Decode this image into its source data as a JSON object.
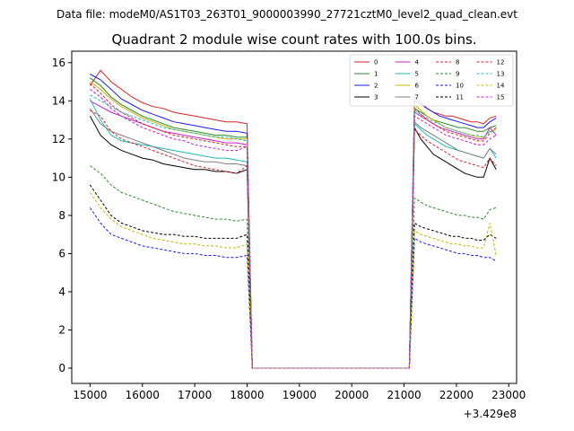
{
  "suptitle": "Data file: modeM0/AS1T03_263T01_9000003990_27721cztM0_level2_quad_clean.evt",
  "chart_data": {
    "type": "line",
    "title": "Quadrant 2 module wise count rates with 100.0s bins.",
    "xlabel": "",
    "ylabel": "",
    "x_offset_label": "+3.429e8",
    "xlim": [
      14650,
      23150
    ],
    "ylim": [
      -0.8,
      16.6
    ],
    "x_ticks": [
      15000,
      16000,
      17000,
      18000,
      19000,
      20000,
      21000,
      22000,
      23000
    ],
    "x_tick_labels": [
      "15000",
      "16000",
      "17000",
      "18000",
      "19000",
      "20000",
      "21000",
      "22000",
      "23000"
    ],
    "y_ticks": [
      0,
      2,
      4,
      6,
      8,
      10,
      12,
      14,
      16
    ],
    "y_tick_labels": [
      "0",
      "2",
      "4",
      "6",
      "8",
      "10",
      "12",
      "14",
      "16"
    ],
    "grid": false,
    "legend_location": "upper right",
    "gap": [
      18100,
      21100
    ],
    "series": [
      {
        "name": "0",
        "color": "#d62020",
        "dash": false,
        "seg1": [
          14.8,
          15.6,
          15.0,
          14.6,
          14.2,
          13.9,
          13.7,
          13.6,
          13.4,
          13.3,
          13.2,
          13.1,
          13.0,
          12.9,
          12.9,
          12.8
        ],
        "seg2": [
          14.0,
          13.8,
          13.6,
          13.4,
          13.3,
          13.2,
          13.2,
          13.1,
          13.0,
          12.9,
          12.9,
          12.8,
          13.1,
          13.2
        ]
      },
      {
        "name": "1",
        "color": "#2a8a2a",
        "dash": false,
        "seg1": [
          15.2,
          14.8,
          14.2,
          13.8,
          13.5,
          13.2,
          13.0,
          12.8,
          12.6,
          12.5,
          12.4,
          12.3,
          12.2,
          12.2,
          12.1,
          12.1
        ],
        "seg2": [
          13.6,
          13.4,
          13.2,
          13.0,
          12.9,
          12.8,
          12.7,
          12.6,
          12.6,
          12.5,
          12.4,
          12.4,
          12.6,
          12.7
        ]
      },
      {
        "name": "2",
        "color": "#1a1af0",
        "dash": false,
        "seg1": [
          15.4,
          15.1,
          14.6,
          14.1,
          13.8,
          13.5,
          13.3,
          13.1,
          12.9,
          12.8,
          12.7,
          12.6,
          12.5,
          12.4,
          12.4,
          12.3
        ],
        "seg2": [
          14.2,
          13.9,
          13.6,
          13.4,
          13.2,
          13.1,
          13.0,
          12.9,
          12.8,
          12.7,
          12.6,
          12.6,
          12.9,
          13.1
        ]
      },
      {
        "name": "3",
        "color": "#000000",
        "dash": false,
        "seg1": [
          13.2,
          12.2,
          11.7,
          11.4,
          11.2,
          11.0,
          10.9,
          10.7,
          10.6,
          10.5,
          10.4,
          10.4,
          10.3,
          10.3,
          10.2,
          10.4
        ],
        "seg2": [
          12.6,
          12.0,
          11.6,
          11.2,
          11.0,
          10.8,
          10.6,
          10.4,
          10.2,
          10.1,
          10.0,
          10.0,
          11.0,
          10.4
        ]
      },
      {
        "name": "4",
        "color": "#c020c0",
        "dash": false,
        "seg1": [
          14.0,
          13.7,
          13.4,
          13.2,
          13.0,
          12.8,
          12.6,
          12.4,
          12.3,
          12.2,
          12.1,
          12.0,
          11.9,
          11.8,
          11.8,
          11.7
        ],
        "seg2": [
          13.4,
          13.2,
          13.0,
          12.8,
          12.6,
          12.5,
          12.4,
          12.3,
          12.2,
          12.1,
          12.0,
          12.0,
          12.6,
          12.2
        ]
      },
      {
        "name": "5",
        "color": "#20b8b8",
        "dash": false,
        "seg1": [
          14.1,
          13.0,
          12.2,
          11.9,
          11.8,
          11.7,
          11.6,
          11.5,
          11.4,
          11.3,
          11.2,
          11.1,
          11.0,
          11.0,
          10.9,
          10.8
        ],
        "seg2": [
          12.8,
          12.5,
          12.2,
          12.0,
          11.8,
          11.6,
          11.5,
          11.4,
          11.3,
          11.2,
          11.1,
          11.0,
          11.5,
          11.0
        ]
      },
      {
        "name": "6",
        "color": "#c8b400",
        "dash": false,
        "seg1": [
          15.0,
          14.6,
          14.1,
          13.7,
          13.4,
          13.1,
          12.9,
          12.7,
          12.5,
          12.4,
          12.3,
          12.2,
          12.1,
          12.0,
          12.0,
          12.0
        ],
        "seg2": [
          13.8,
          13.5,
          13.2,
          13.0,
          12.8,
          12.6,
          12.5,
          12.4,
          12.3,
          12.2,
          12.1,
          12.1,
          12.4,
          12.5
        ]
      },
      {
        "name": "7",
        "color": "#7f7f7f",
        "dash": false,
        "seg1": [
          13.6,
          12.8,
          12.4,
          12.2,
          12.0,
          11.8,
          11.6,
          11.4,
          11.2,
          11.0,
          10.9,
          10.8,
          10.8,
          10.7,
          10.7,
          10.6
        ],
        "seg2": [
          12.9,
          12.6,
          12.4,
          12.2,
          12.0,
          11.8,
          11.6,
          11.4,
          11.3,
          11.2,
          11.1,
          11.0,
          11.5,
          11.2
        ]
      },
      {
        "name": "8",
        "color": "#d62020",
        "dash": true,
        "seg1": [
          13.5,
          13.2,
          12.4,
          12.0,
          11.8,
          11.6,
          11.4,
          11.2,
          11.0,
          10.8,
          10.6,
          10.5,
          10.4,
          10.3,
          10.2,
          10.6
        ],
        "seg2": [
          12.5,
          12.2,
          11.9,
          11.7,
          11.5,
          11.3,
          11.1,
          10.9,
          10.8,
          10.7,
          10.6,
          10.5,
          11.0,
          10.6
        ]
      },
      {
        "name": "9",
        "color": "#2a8a2a",
        "dash": true,
        "seg1": [
          10.6,
          10.2,
          9.6,
          9.2,
          9.0,
          8.8,
          8.6,
          8.4,
          8.2,
          8.1,
          8.0,
          7.9,
          7.8,
          7.8,
          7.7,
          7.8
        ],
        "seg2": [
          8.9,
          8.7,
          8.5,
          8.4,
          8.3,
          8.2,
          8.1,
          8.0,
          8.0,
          7.9,
          7.9,
          7.8,
          8.3,
          8.4
        ]
      },
      {
        "name": "10",
        "color": "#1a1af0",
        "dash": true,
        "seg1": [
          8.4,
          7.6,
          7.0,
          6.8,
          6.6,
          6.4,
          6.3,
          6.2,
          6.1,
          6.0,
          6.0,
          5.9,
          5.9,
          5.8,
          5.8,
          5.9
        ],
        "seg2": [
          6.8,
          6.6,
          6.5,
          6.4,
          6.3,
          6.2,
          6.1,
          6.0,
          6.0,
          5.9,
          5.9,
          5.8,
          5.8,
          5.6
        ]
      },
      {
        "name": "11",
        "color": "#000000",
        "dash": true,
        "seg1": [
          9.6,
          8.8,
          8.0,
          7.6,
          7.4,
          7.2,
          7.1,
          7.0,
          7.0,
          6.9,
          6.9,
          6.8,
          6.8,
          6.8,
          6.8,
          7.0
        ],
        "seg2": [
          7.6,
          7.4,
          7.3,
          7.2,
          7.1,
          7.0,
          6.9,
          6.9,
          6.8,
          6.8,
          6.7,
          6.7,
          7.0,
          6.8
        ]
      },
      {
        "name": "12",
        "color": "#d62020",
        "dash": true,
        "seg1": [
          14.9,
          14.4,
          13.8,
          13.4,
          13.1,
          12.8,
          12.6,
          12.4,
          12.2,
          12.1,
          12.0,
          11.9,
          11.8,
          11.7,
          11.6,
          11.6
        ],
        "seg2": [
          13.6,
          13.3,
          13.0,
          12.8,
          12.6,
          12.4,
          12.3,
          12.2,
          12.1,
          12.0,
          11.9,
          11.9,
          12.3,
          12.6
        ]
      },
      {
        "name": "13",
        "color": "#20b8b8",
        "dash": true,
        "seg1": [
          14.3,
          14.0,
          13.7,
          13.4,
          13.2,
          13.0,
          12.8,
          12.6,
          12.5,
          12.4,
          12.3,
          12.2,
          12.1,
          12.1,
          12.0,
          11.9
        ],
        "seg2": [
          13.5,
          13.3,
          13.1,
          12.9,
          12.8,
          12.6,
          12.5,
          12.4,
          12.3,
          12.2,
          12.2,
          12.1,
          12.4,
          12.4
        ]
      },
      {
        "name": "14",
        "color": "#c8b400",
        "dash": true,
        "seg1": [
          9.2,
          8.4,
          7.8,
          7.4,
          7.2,
          7.0,
          6.8,
          6.7,
          6.6,
          6.5,
          6.5,
          6.4,
          6.4,
          6.3,
          6.3,
          6.5
        ],
        "seg2": [
          7.2,
          7.0,
          6.9,
          6.8,
          6.7,
          6.6,
          6.5,
          6.5,
          6.4,
          6.4,
          6.3,
          6.3,
          7.6,
          5.9
        ]
      },
      {
        "name": "15",
        "color": "#c020c0",
        "dash": true,
        "seg1": [
          14.6,
          14.2,
          13.6,
          13.2,
          12.9,
          12.6,
          12.4,
          12.2,
          12.0,
          11.9,
          11.7,
          11.6,
          11.5,
          11.4,
          11.4,
          11.6
        ],
        "seg2": [
          13.2,
          13.0,
          12.8,
          12.6,
          12.4,
          12.2,
          12.1,
          12.0,
          11.9,
          11.8,
          11.7,
          11.7,
          12.0,
          12.2
        ]
      }
    ]
  }
}
